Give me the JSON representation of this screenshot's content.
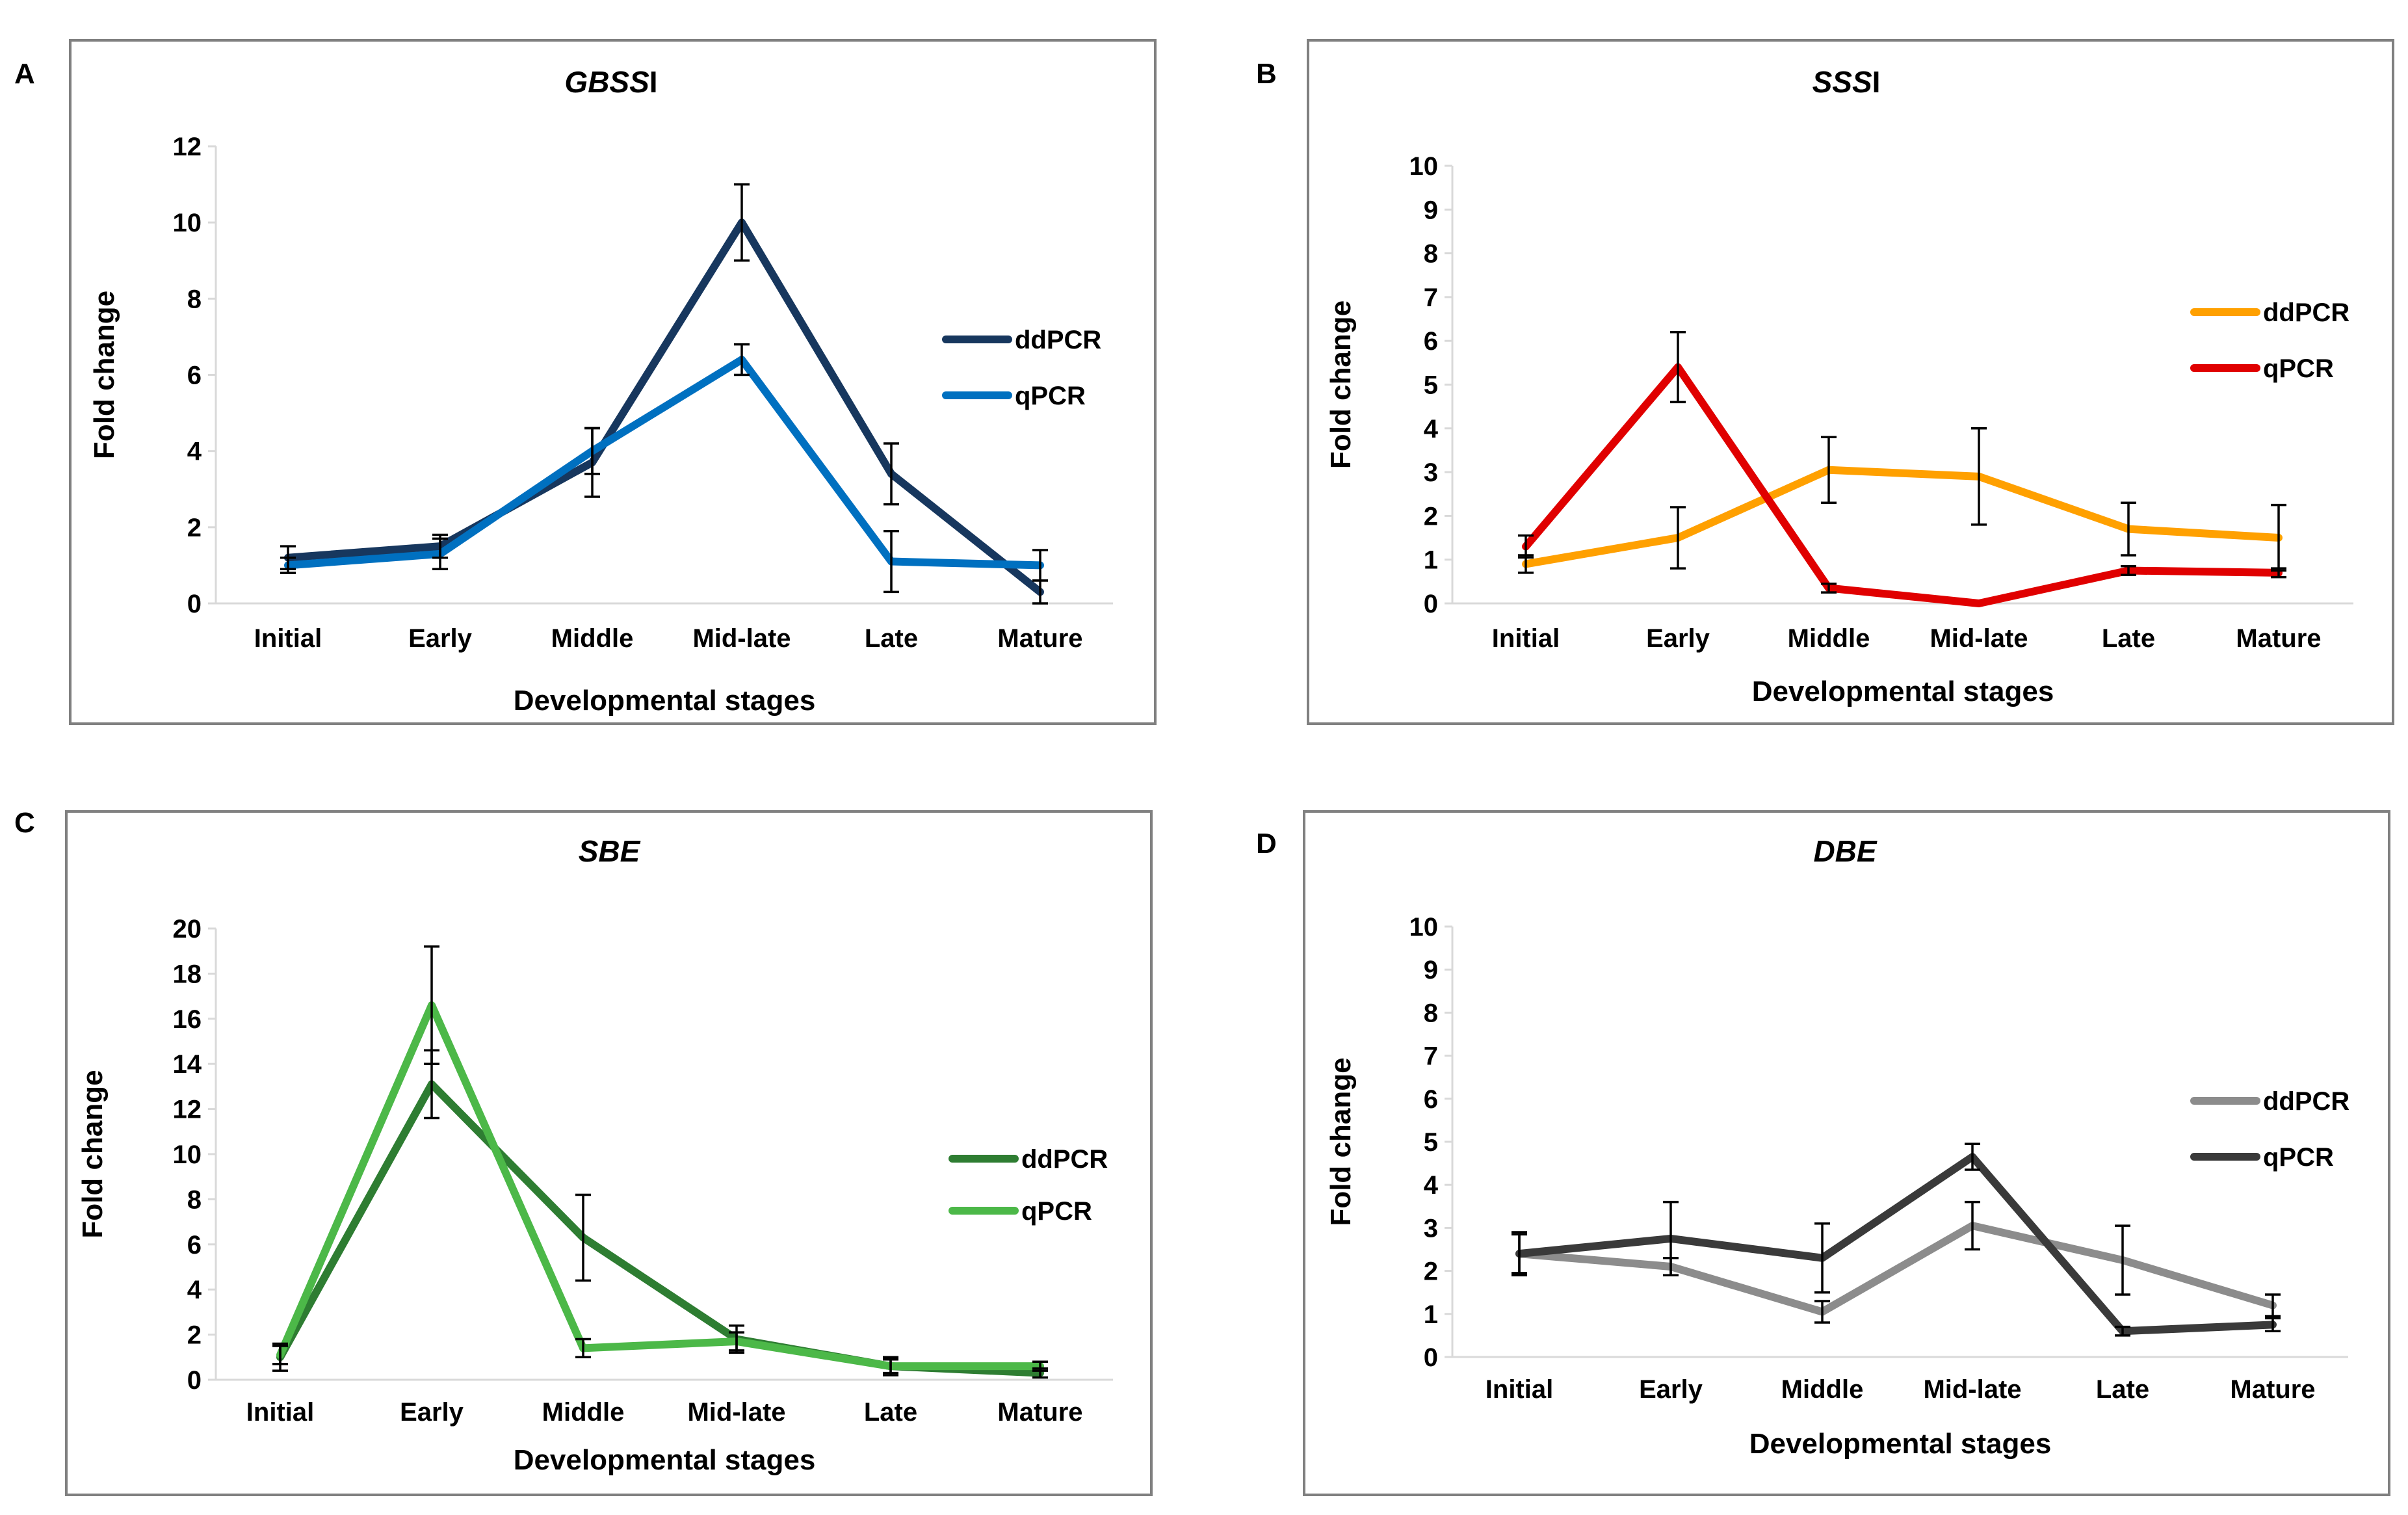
{
  "chart_data": [
    {
      "panel": "A",
      "type": "line",
      "title_italic": "GBSS",
      "title_suffix": "I",
      "xlabel": "Developmental stages",
      "ylabel": "Fold change",
      "categories": [
        "Initial",
        "Early",
        "Middle",
        "Mid-late",
        "Late",
        "Mature"
      ],
      "ylim": [
        0,
        12
      ],
      "yticks": [
        0,
        2,
        4,
        6,
        8,
        10,
        12
      ],
      "grid": false,
      "legend_position": "right",
      "series": [
        {
          "name": "ddPCR",
          "color": "#17375e",
          "values": [
            1.2,
            1.5,
            3.7,
            10.0,
            3.4,
            0.3
          ],
          "errors": [
            0.3,
            0.3,
            0.9,
            1.0,
            0.8,
            0.3
          ]
        },
        {
          "name": "qPCR",
          "color": "#0070c0",
          "values": [
            1.0,
            1.3,
            4.0,
            6.4,
            1.1,
            1.0
          ],
          "errors": [
            0.2,
            0.4,
            0.6,
            0.4,
            0.8,
            0.4
          ]
        }
      ]
    },
    {
      "panel": "B",
      "type": "line",
      "title_italic": "SSS",
      "title_suffix": "I",
      "xlabel": "Developmental stages",
      "ylabel": "Fold change",
      "categories": [
        "Initial",
        "Early",
        "Middle",
        "Mid-late",
        "Late",
        "Mature"
      ],
      "ylim": [
        0,
        10
      ],
      "yticks": [
        0,
        1,
        2,
        3,
        4,
        5,
        6,
        7,
        8,
        9,
        10
      ],
      "grid": false,
      "legend_position": "right",
      "series": [
        {
          "name": "ddPCR",
          "color": "#ffa000",
          "values": [
            0.9,
            1.5,
            3.05,
            2.9,
            1.7,
            1.5
          ],
          "errors": [
            0.2,
            0.7,
            0.75,
            1.1,
            0.6,
            0.75
          ]
        },
        {
          "name": "qPCR",
          "color": "#e00000",
          "values": [
            1.3,
            5.4,
            0.35,
            0.0,
            0.75,
            0.7
          ],
          "errors": [
            0.25,
            0.8,
            0.1,
            0.0,
            0.1,
            0.1
          ]
        }
      ]
    },
    {
      "panel": "C",
      "type": "line",
      "title_italic": "SBE",
      "title_suffix": "",
      "xlabel": "Developmental stages",
      "ylabel": "Fold change",
      "categories": [
        "Initial",
        "Early",
        "Middle",
        "Mid-late",
        "Late",
        "Mature"
      ],
      "ylim": [
        0,
        20
      ],
      "yticks": [
        0,
        2,
        4,
        6,
        8,
        10,
        12,
        14,
        16,
        18,
        20
      ],
      "grid": false,
      "legend_position": "right",
      "series": [
        {
          "name": "ddPCR",
          "color": "#2e7d32",
          "values": [
            1.0,
            13.1,
            6.3,
            1.8,
            0.6,
            0.3
          ],
          "errors": [
            0.6,
            1.5,
            1.9,
            0.6,
            0.4,
            0.2
          ]
        },
        {
          "name": "qPCR",
          "color": "#4cb848",
          "values": [
            1.1,
            16.6,
            1.4,
            1.7,
            0.6,
            0.6
          ],
          "errors": [
            0.4,
            2.6,
            0.4,
            0.4,
            0.3,
            0.2
          ]
        }
      ]
    },
    {
      "panel": "D",
      "type": "line",
      "title_italic": "DBE",
      "title_suffix": "",
      "xlabel": "Developmental stages",
      "ylabel": "Fold change",
      "categories": [
        "Initial",
        "Early",
        "Middle",
        "Mid-late",
        "Late",
        "Mature"
      ],
      "ylim": [
        0,
        10
      ],
      "yticks": [
        0,
        1,
        2,
        3,
        4,
        5,
        6,
        7,
        8,
        9,
        10
      ],
      "grid": false,
      "legend_position": "right",
      "series": [
        {
          "name": "ddPCR",
          "color": "#8c8c8c",
          "values": [
            2.4,
            2.1,
            1.05,
            3.05,
            2.25,
            1.2
          ],
          "errors": [
            0.5,
            0.2,
            0.25,
            0.55,
            0.8,
            0.25
          ]
        },
        {
          "name": "qPCR",
          "color": "#3a3a3a",
          "values": [
            2.4,
            2.75,
            2.3,
            4.65,
            0.6,
            0.75
          ],
          "errors": [
            0.45,
            0.85,
            0.8,
            0.3,
            0.1,
            0.15
          ]
        }
      ]
    }
  ]
}
